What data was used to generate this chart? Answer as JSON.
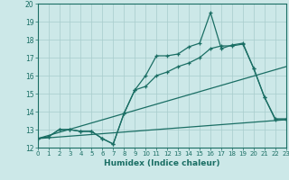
{
  "title": "",
  "xlabel": "Humidex (Indice chaleur)",
  "ylabel": "",
  "xlim": [
    0,
    23
  ],
  "ylim": [
    12,
    20
  ],
  "xticks": [
    0,
    1,
    2,
    3,
    4,
    5,
    6,
    7,
    8,
    9,
    10,
    11,
    12,
    13,
    14,
    15,
    16,
    17,
    18,
    19,
    20,
    21,
    22,
    23
  ],
  "yticks": [
    12,
    13,
    14,
    15,
    16,
    17,
    18,
    19,
    20
  ],
  "background_color": "#cce8e8",
  "line_color": "#1a6e64",
  "grid_color": "#a8cccc",
  "line1_x": [
    0,
    1,
    2,
    3,
    4,
    5,
    6,
    7,
    8,
    9,
    10,
    11,
    12,
    13,
    14,
    15,
    16,
    17,
    18,
    19,
    20,
    21,
    22,
    23
  ],
  "line1_y": [
    12.5,
    12.6,
    13.0,
    13.0,
    12.9,
    12.9,
    12.5,
    12.2,
    13.9,
    15.2,
    16.0,
    17.1,
    17.1,
    17.2,
    17.6,
    17.8,
    19.5,
    17.5,
    17.7,
    17.8,
    16.4,
    14.8,
    13.6,
    13.6
  ],
  "line2_x": [
    0,
    1,
    2,
    3,
    4,
    5,
    6,
    7,
    8,
    9,
    10,
    11,
    12,
    13,
    14,
    15,
    16,
    17,
    18,
    19,
    20,
    21,
    22,
    23
  ],
  "line2_y": [
    12.5,
    12.6,
    13.0,
    13.0,
    12.9,
    12.9,
    12.5,
    12.2,
    13.9,
    15.2,
    15.4,
    16.0,
    16.2,
    16.5,
    16.7,
    17.0,
    17.5,
    17.65,
    17.65,
    17.75,
    16.4,
    14.8,
    13.55,
    13.55
  ],
  "line3_x": [
    0,
    23
  ],
  "line3_y": [
    12.5,
    13.55
  ],
  "line4_x": [
    0,
    23
  ],
  "line4_y": [
    12.5,
    16.5
  ]
}
